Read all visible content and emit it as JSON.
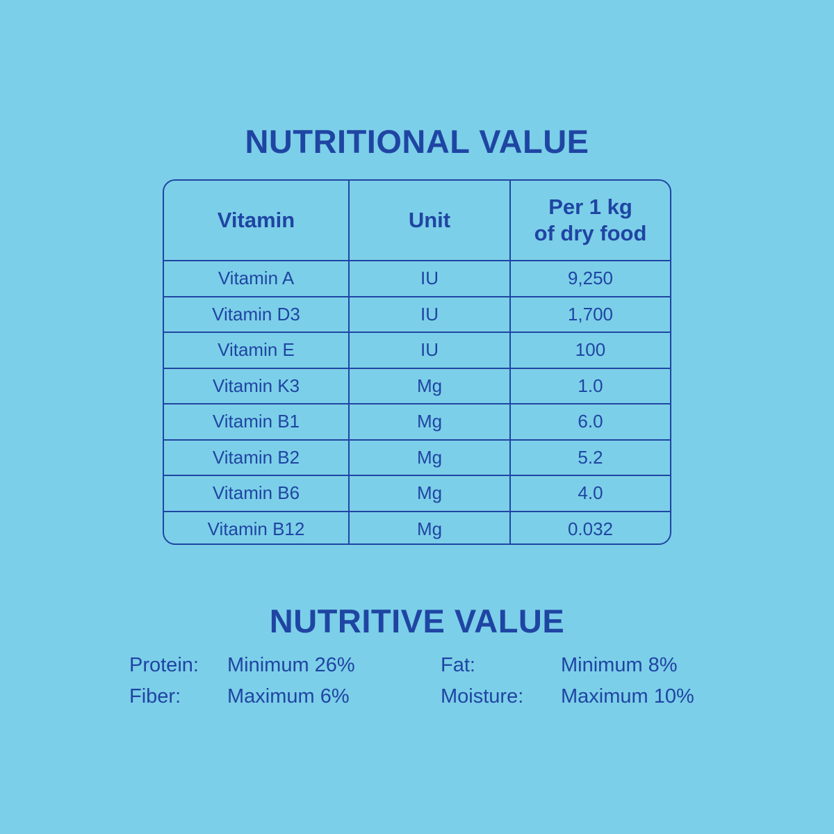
{
  "nutritional_title": "NUTRITIONAL VALUE",
  "table": {
    "headers": {
      "vitamin": "Vitamin",
      "unit": "Unit",
      "per_line1": "Per 1 kg",
      "per_line2": "of dry food"
    },
    "rows": [
      {
        "vitamin": "Vitamin A",
        "unit": "IU",
        "value": "9,250"
      },
      {
        "vitamin": "Vitamin D3",
        "unit": "IU",
        "value": "1,700"
      },
      {
        "vitamin": "Vitamin E",
        "unit": "IU",
        "value": "100"
      },
      {
        "vitamin": "Vitamin K3",
        "unit": "Mg",
        "value": "1.0"
      },
      {
        "vitamin": "Vitamin B1",
        "unit": "Mg",
        "value": "6.0"
      },
      {
        "vitamin": "Vitamin B2",
        "unit": "Mg",
        "value": "5.2"
      },
      {
        "vitamin": "Vitamin B6",
        "unit": "Mg",
        "value": "4.0"
      },
      {
        "vitamin": "Vitamin B12",
        "unit": "Mg",
        "value": "0.032"
      }
    ]
  },
  "nutritive_title": "NUTRITIVE VALUE",
  "nutritive": {
    "protein_label": "Protein:",
    "protein_value": "Minimum 26%",
    "fat_label": "Fat:",
    "fat_value": "Minimum 8%",
    "fiber_label": "Fiber:",
    "fiber_value": "Maximum 6%",
    "moisture_label": "Moisture:",
    "moisture_value": "Maximum 10%"
  },
  "colors": {
    "background": "#7ccfe8",
    "text": "#1f45a3"
  }
}
